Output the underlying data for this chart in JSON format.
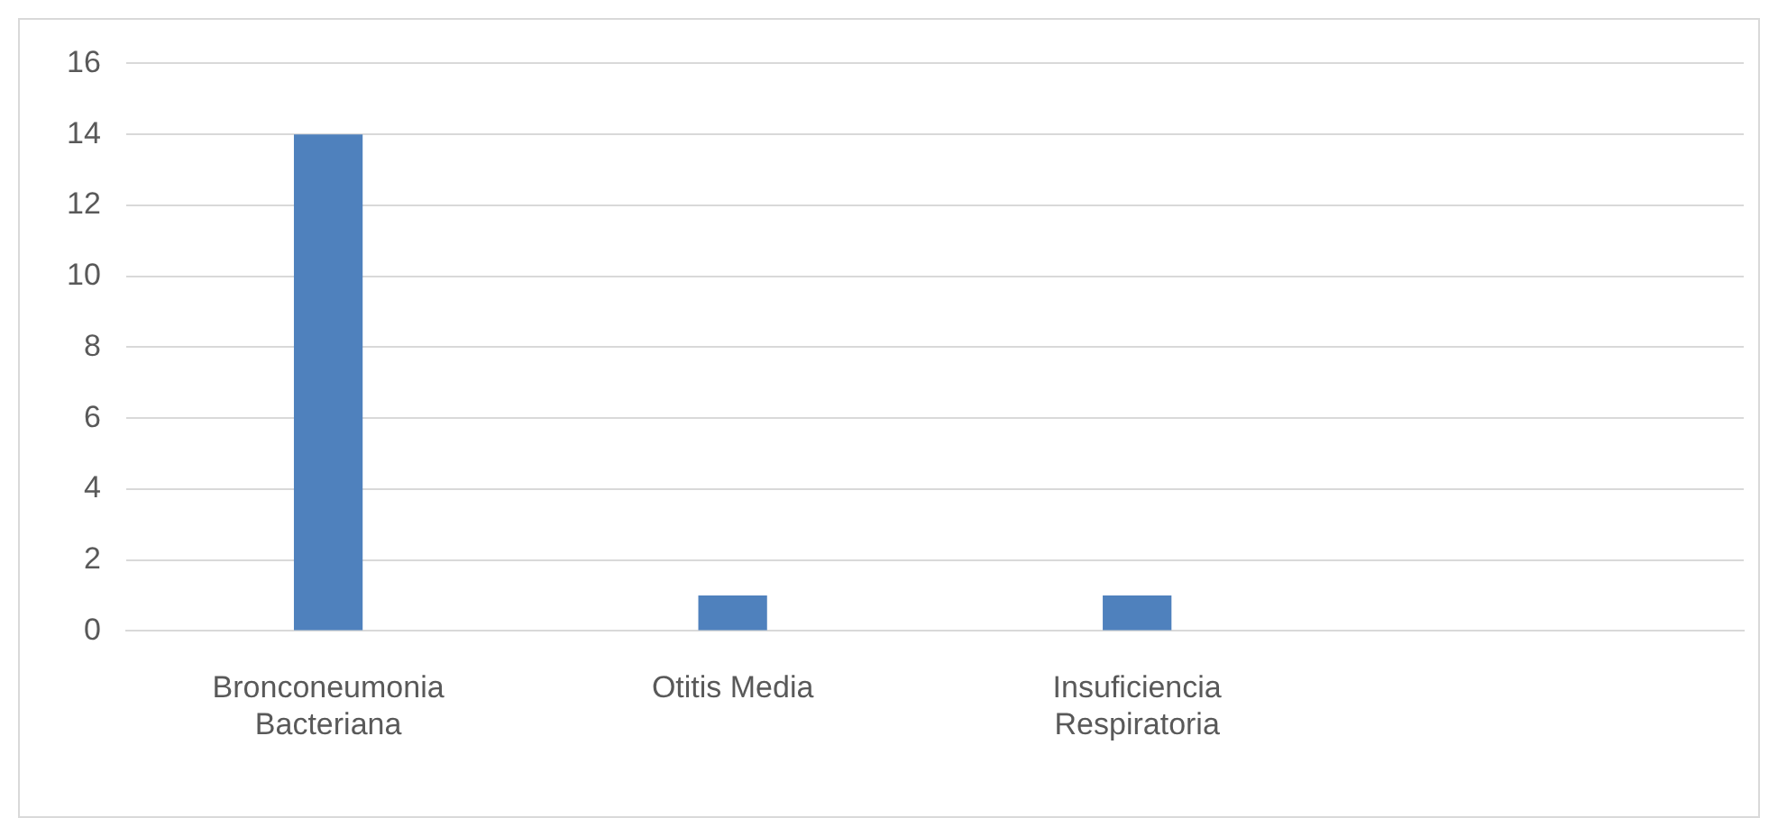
{
  "chart_data": {
    "type": "bar",
    "categories": [
      "Bronconeumonia Bacteriana",
      "Otitis Media",
      "Insuficiencia Respiratoria",
      null
    ],
    "values": [
      14,
      1,
      1,
      null
    ],
    "color": "#4f81bd",
    "ylim": [
      0,
      16
    ],
    "yticks": [
      0,
      2,
      4,
      6,
      8,
      10,
      12,
      14,
      16
    ],
    "grid": "y",
    "legend": false
  }
}
